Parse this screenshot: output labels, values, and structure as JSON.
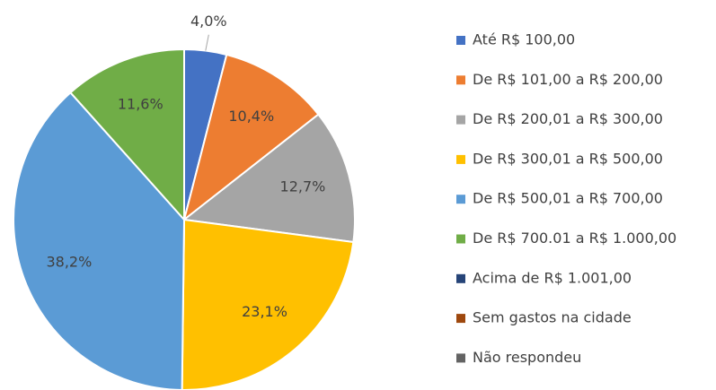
{
  "chart_data": {
    "type": "pie",
    "categories": [
      "Até R$ 100,00",
      "De R$ 101,00 a R$ 200,00",
      "De R$ 200,01 a R$ 300,00",
      "De R$ 300,01 a R$ 500,00",
      "De R$ 500,01 a R$ 700,00",
      "De R$ 700.01 a R$ 1.000,00",
      "Acima de R$ 1.001,00",
      "Sem gastos na cidade",
      "Não respondeu"
    ],
    "values": [
      4.0,
      10.4,
      12.7,
      23.1,
      38.2,
      11.6,
      0,
      0,
      0
    ],
    "value_labels": [
      "4,0%",
      "10,4%",
      "12,7%",
      "23,1%",
      "38,2%",
      "11,6%",
      null,
      null,
      null
    ],
    "colors": [
      "#4472c4",
      "#ed7d31",
      "#a5a5a5",
      "#ffc000",
      "#5b9bd5",
      "#70ad47",
      "#264478",
      "#9e480e",
      "#636363"
    ],
    "legend": "right"
  }
}
